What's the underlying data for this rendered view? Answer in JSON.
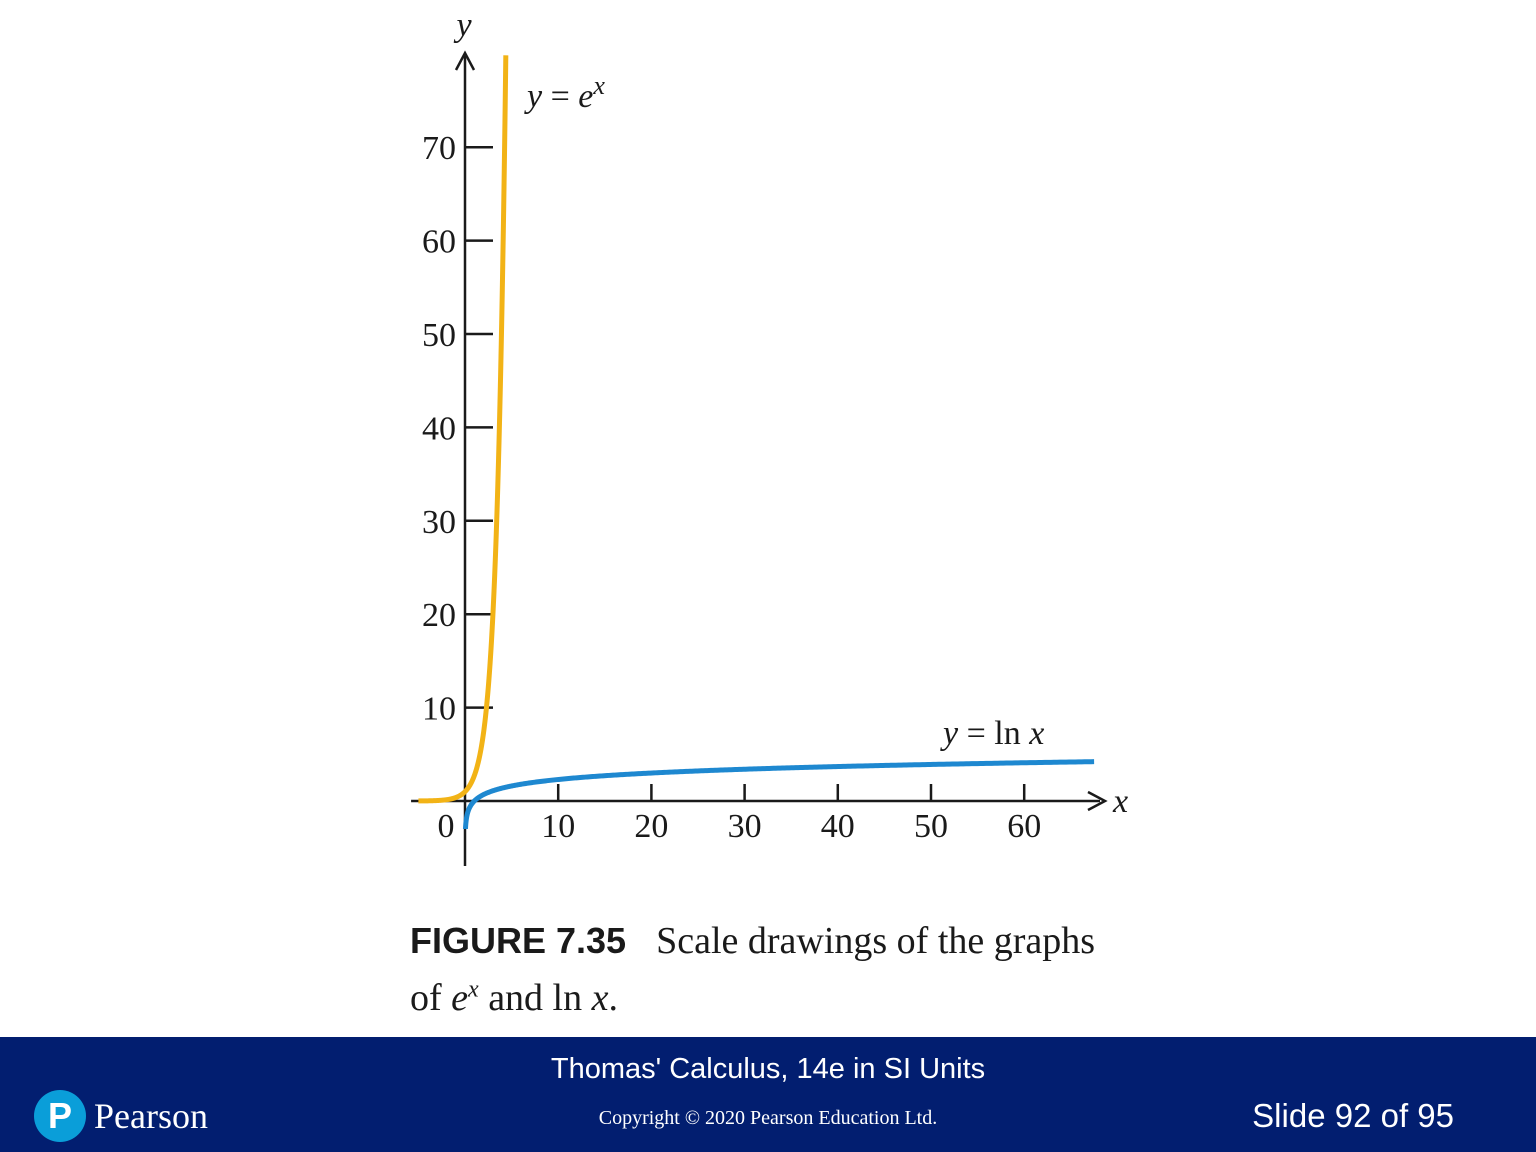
{
  "chart_data": {
    "type": "line",
    "title": "",
    "xlabel": "x",
    "ylabel": "y",
    "xlim": [
      -6,
      68
    ],
    "ylim": [
      -7,
      80
    ],
    "x_ticks": [
      10,
      20,
      30,
      40,
      50,
      60
    ],
    "y_ticks": [
      10,
      20,
      30,
      40,
      50,
      60,
      70
    ],
    "origin_label": "0",
    "grid": false,
    "series": [
      {
        "name": "y = e^x",
        "label_parts": [
          "y",
          " = ",
          "e",
          "x"
        ],
        "color": "#f2b316",
        "function": "exp",
        "domain": [
          -5,
          4.38
        ]
      },
      {
        "name": "y = ln x",
        "label_parts": [
          "y",
          " = ln ",
          "x"
        ],
        "color": "#1e88d0",
        "function": "ln",
        "domain": [
          0.05,
          67.5
        ]
      }
    ]
  },
  "caption": {
    "figure_number": "FIGURE 7.35",
    "text_1": "Scale drawings of the graphs of ",
    "base": "e",
    "exponent": "x",
    "text_2": " and ln ",
    "var": "x",
    "text_3": "."
  },
  "footer": {
    "book_title": "Thomas' Calculus, 14e in SI Units",
    "copyright": "Copyright © 2020 Pearson Education Ltd.",
    "slide_counter": "Slide 92 of 95",
    "logo_mark": "P",
    "logo_text": "Pearson",
    "background_color": "#021e70"
  }
}
